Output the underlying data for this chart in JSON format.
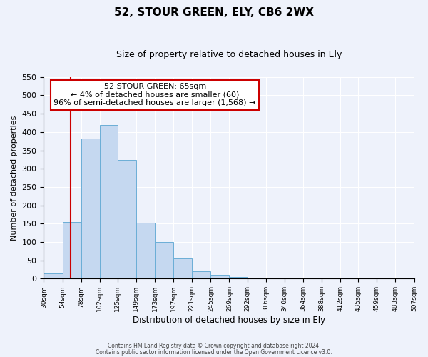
{
  "title": "52, STOUR GREEN, ELY, CB6 2WX",
  "subtitle": "Size of property relative to detached houses in Ely",
  "xlabel": "Distribution of detached houses by size in Ely",
  "ylabel": "Number of detached properties",
  "bin_edges": [
    30,
    54,
    78,
    102,
    125,
    149,
    173,
    197,
    221,
    245,
    269,
    292,
    316,
    340,
    364,
    388,
    412,
    435,
    459,
    483,
    507
  ],
  "bar_heights": [
    15,
    155,
    383,
    420,
    323,
    153,
    100,
    55,
    20,
    10,
    5,
    3,
    2,
    1,
    1,
    0,
    2,
    1,
    0,
    2
  ],
  "bar_color": "#c5d8f0",
  "bar_edge_color": "#6baed6",
  "red_line_x": 65,
  "annotation_title": "52 STOUR GREEN: 65sqm",
  "annotation_line1": "← 4% of detached houses are smaller (60)",
  "annotation_line2": "96% of semi-detached houses are larger (1,568) →",
  "annotation_box_color": "#ffffff",
  "annotation_box_edge": "#cc0000",
  "red_line_color": "#cc0000",
  "ylim": [
    0,
    550
  ],
  "yticks": [
    0,
    50,
    100,
    150,
    200,
    250,
    300,
    350,
    400,
    450,
    500,
    550
  ],
  "footnote1": "Contains HM Land Registry data © Crown copyright and database right 2024.",
  "footnote2": "Contains public sector information licensed under the Open Government Licence v3.0.",
  "bg_color": "#eef2fb",
  "grid_color": "#ffffff"
}
